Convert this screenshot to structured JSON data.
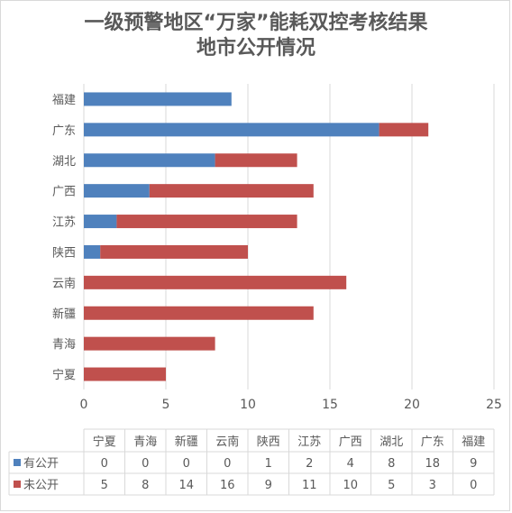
{
  "title_line1": "一级预警地区“万家”能耗双控考核结果",
  "title_line2": "地市公开情况",
  "chart_data": {
    "type": "bar",
    "orientation": "horizontal",
    "stacked": true,
    "title": "一级预警地区“万家”能耗双控考核结果地市公开情况",
    "categories": [
      "福建",
      "广东",
      "湖北",
      "广西",
      "江苏",
      "陕西",
      "云南",
      "新疆",
      "青海",
      "宁夏"
    ],
    "series": [
      {
        "name": "有公开",
        "color": "#4f81bd",
        "values": [
          9,
          18,
          8,
          4,
          2,
          1,
          0,
          0,
          0,
          0
        ]
      },
      {
        "name": "未公开",
        "color": "#c0504d",
        "values": [
          0,
          3,
          5,
          10,
          11,
          9,
          16,
          14,
          8,
          5
        ]
      }
    ],
    "xlim": [
      0,
      25
    ],
    "xticks": [
      0,
      5,
      10,
      15,
      20,
      25
    ],
    "grid": true,
    "legend": "data-table",
    "table": {
      "columns": [
        "宁夏",
        "青海",
        "新疆",
        "云南",
        "陕西",
        "江苏",
        "广西",
        "湖北",
        "广东",
        "福建"
      ],
      "rows": [
        {
          "name": "有公开",
          "color": "#4f81bd",
          "values": [
            0,
            0,
            0,
            0,
            1,
            2,
            4,
            8,
            18,
            9
          ]
        },
        {
          "name": "未公开",
          "color": "#c0504d",
          "values": [
            5,
            8,
            14,
            16,
            9,
            11,
            10,
            5,
            3,
            0
          ]
        }
      ]
    }
  }
}
